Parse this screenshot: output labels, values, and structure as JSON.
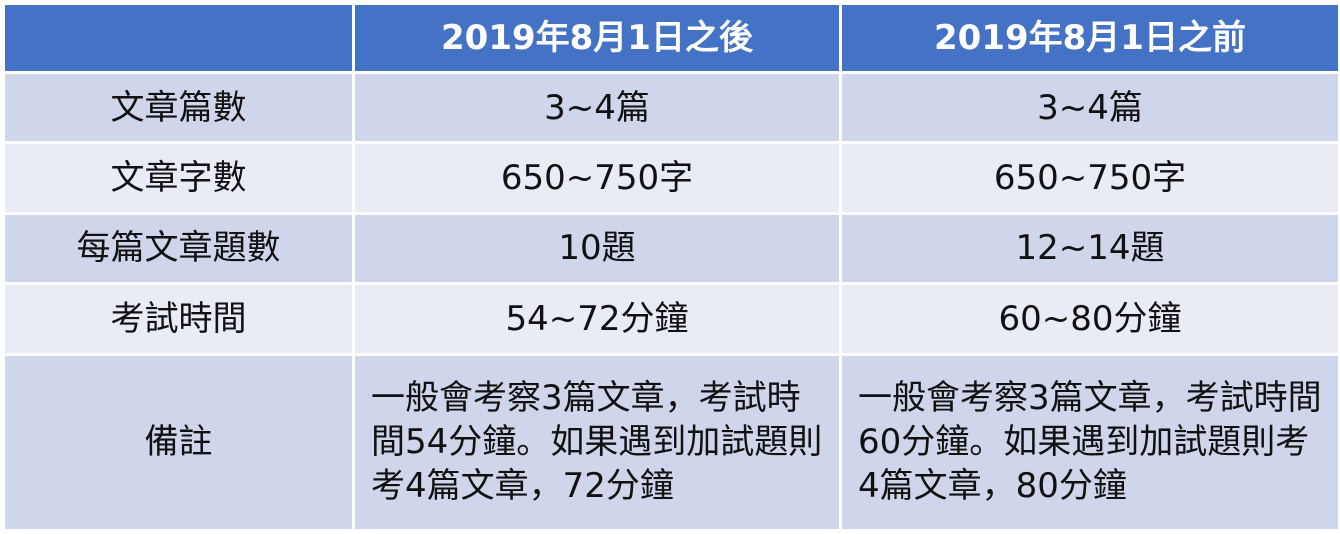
{
  "table": {
    "headers": [
      "",
      "2019年8月1日之後",
      "2019年8月1日之前"
    ],
    "rows": [
      {
        "label": "文章篇數",
        "after": "3~4篇",
        "before": "3~4篇"
      },
      {
        "label": "文章字數",
        "after": "650~750字",
        "before": "650~750字"
      },
      {
        "label": "每篇文章題數",
        "after": "10題",
        "before": "12~14題"
      },
      {
        "label": "考試時間",
        "after": "54~72分鐘",
        "before": "60~80分鐘"
      },
      {
        "label": "備註",
        "after": "一般會考察3篇文章，考試時間54分鐘。如果遇到加試題則考4篇文章，72分鐘",
        "before": "一般會考察3篇文章，考試時間60分鐘。如果遇到加試題則考4篇文章，80分鐘"
      }
    ]
  }
}
